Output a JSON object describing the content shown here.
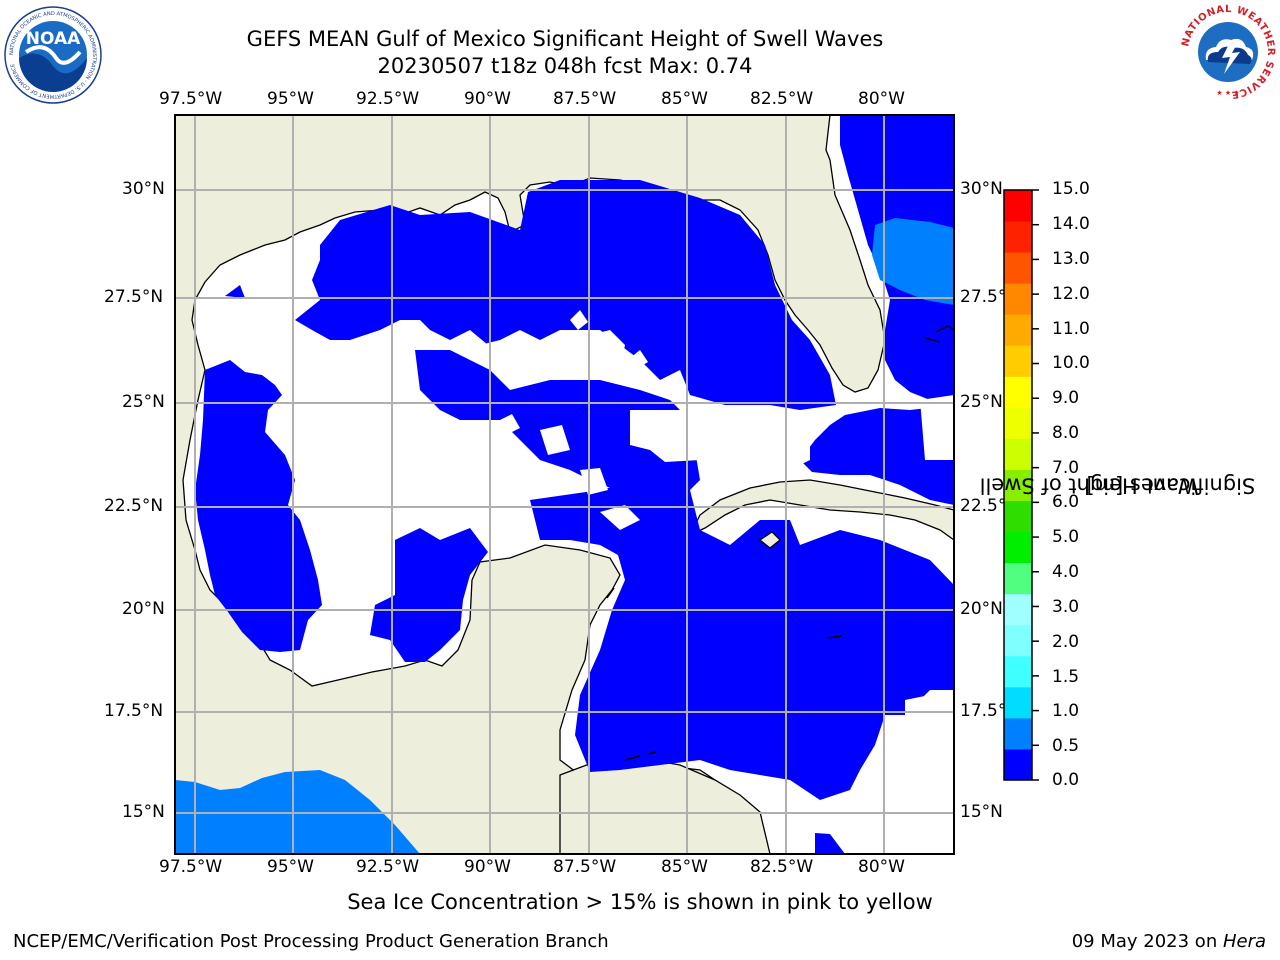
{
  "header": {
    "title": "GEFS MEAN Gulf of Mexico Significant Height of Swell Waves",
    "subtitle": "20230507 t18z 048h fcst   Max: 0.74"
  },
  "logos": {
    "left": "NOAA",
    "left_ring_text": "NATIONAL OCEANIC AND ATMOSPHERIC ADMINISTRATION · U.S. DEPARTMENT OF COMMERCE",
    "right_ring_text": "NATIONAL WEATHER SERVICE"
  },
  "map": {
    "lon_labels": [
      "97.5°W",
      "95°W",
      "92.5°W",
      "90°W",
      "87.5°W",
      "85°W",
      "82.5°W",
      "80°W"
    ],
    "lat_labels_left": [
      "30°N",
      "27.5°N",
      "25°N",
      "22.5°N",
      "20°N",
      "17.5°N",
      "15°N"
    ],
    "lat_labels_right": [
      "30°N",
      "27.5°N",
      "25°N",
      "22.5°N",
      "20°N",
      "17.5°N",
      "15°N"
    ],
    "colors": {
      "land": "#eeeedd",
      "swell_0_0p5": "#0000ff",
      "swell_0p5_1": "#0080ff",
      "no_swell": "#ffffff",
      "grid": "#b0b0b0",
      "coast": "#000000"
    }
  },
  "colorbar": {
    "label_line1": "Significant Height of Swell",
    "label_line2": "Waves [m]",
    "ticks": [
      "15.0",
      "14.0",
      "13.0",
      "12.0",
      "11.0",
      "10.0",
      "9.0",
      "8.0",
      "7.0",
      "6.0",
      "5.0",
      "4.0",
      "3.0",
      "2.0",
      "1.5",
      "1.0",
      "0.5",
      "0.0"
    ],
    "bin_colors_bottom_to_top": [
      "#0000ff",
      "#0080ff",
      "#00ddff",
      "#40ffff",
      "#80ffff",
      "#a0ffff",
      "#50ff80",
      "#00ee00",
      "#30dd00",
      "#88ee00",
      "#ccff00",
      "#eeff00",
      "#ffff00",
      "#ffcc00",
      "#ffaa00",
      "#ff8800",
      "#ff5500",
      "#ff2200",
      "#ff0000"
    ]
  },
  "note": "Sea Ice Concentration > 15% is shown in pink to yellow",
  "footer": {
    "left": "NCEP/EMC/Verification Post Processing Product Generation Branch",
    "right_prefix": "09 May 2023 on ",
    "right_host": "Hera"
  }
}
